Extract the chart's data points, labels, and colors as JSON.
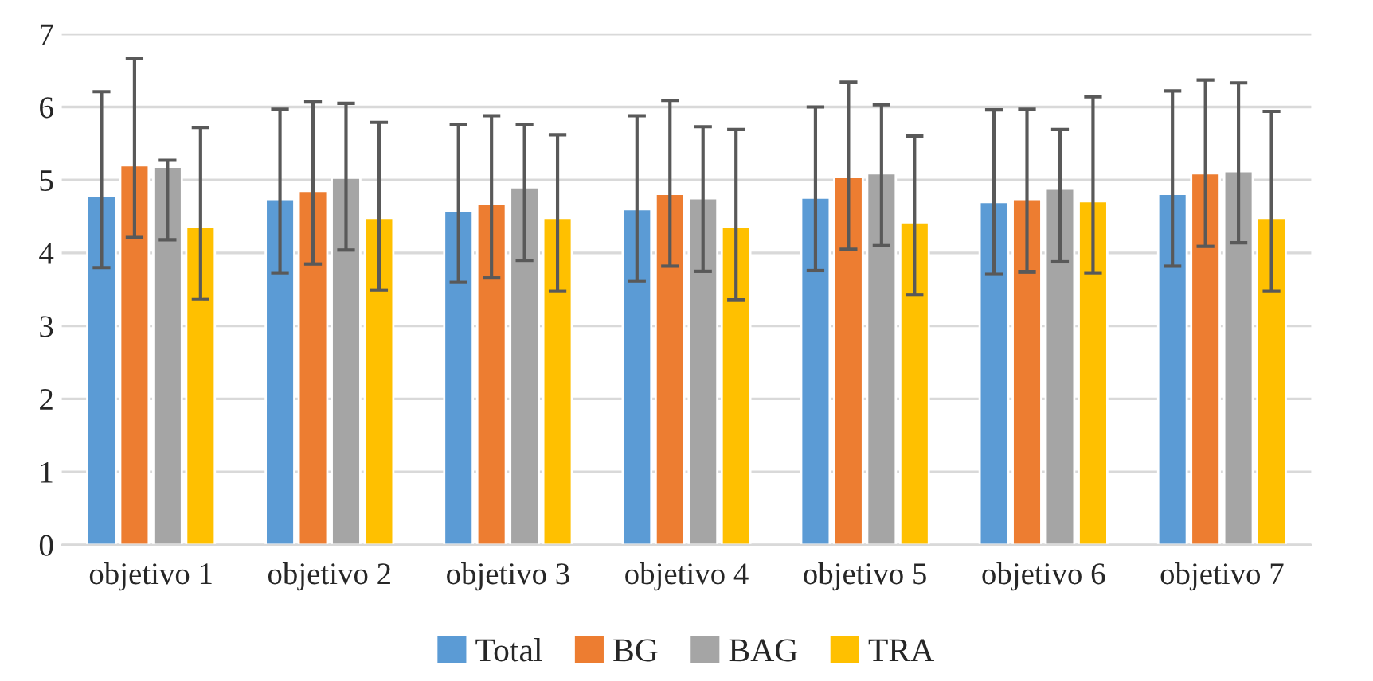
{
  "chart_data": {
    "type": "bar",
    "categories": [
      "objetivo 1",
      "objetivo 2",
      "objetivo 3",
      "objetivo 4",
      "objetivo 5",
      "objetivo 6",
      "objetivo 7"
    ],
    "series": [
      {
        "name": "Total",
        "color": "#5b9bd5",
        "values": [
          4.79,
          4.73,
          4.58,
          4.6,
          4.76,
          4.7,
          4.81
        ],
        "errors": [
          [
            3.8,
            6.21
          ],
          [
            3.72,
            5.97
          ],
          [
            3.6,
            5.76
          ],
          [
            3.61,
            5.88
          ],
          [
            3.76,
            6.0
          ],
          [
            3.71,
            5.96
          ],
          [
            3.82,
            6.22
          ]
        ]
      },
      {
        "name": "BG",
        "color": "#ed7d31",
        "values": [
          5.2,
          4.85,
          4.67,
          4.81,
          5.04,
          4.73,
          5.09
        ],
        "errors": [
          [
            4.21,
            6.66
          ],
          [
            3.85,
            6.07
          ],
          [
            3.66,
            5.88
          ],
          [
            3.82,
            6.09
          ],
          [
            4.05,
            6.34
          ],
          [
            3.74,
            5.97
          ],
          [
            4.09,
            6.37
          ]
        ]
      },
      {
        "name": "BAG",
        "color": "#a5a5a5",
        "values": [
          5.18,
          5.03,
          4.9,
          4.75,
          5.09,
          4.88,
          5.12
        ],
        "errors": [
          [
            4.18,
            5.27
          ],
          [
            4.04,
            6.05
          ],
          [
            3.9,
            5.76
          ],
          [
            3.75,
            5.73
          ],
          [
            4.1,
            6.03
          ],
          [
            3.88,
            5.69
          ],
          [
            4.14,
            6.33
          ]
        ]
      },
      {
        "name": "TRA",
        "color": "#ffc000",
        "values": [
          4.36,
          4.48,
          4.48,
          4.36,
          4.42,
          4.71,
          4.48
        ],
        "errors": [
          [
            3.37,
            5.72
          ],
          [
            3.49,
            5.79
          ],
          [
            3.48,
            5.62
          ],
          [
            3.36,
            5.69
          ],
          [
            3.43,
            5.6
          ],
          [
            3.72,
            6.14
          ],
          [
            3.48,
            5.94
          ]
        ]
      }
    ],
    "ylim": [
      0,
      7
    ],
    "yticks": [
      0,
      1,
      2,
      3,
      4,
      5,
      6,
      7
    ],
    "grid": "y",
    "legend": "bottom"
  }
}
